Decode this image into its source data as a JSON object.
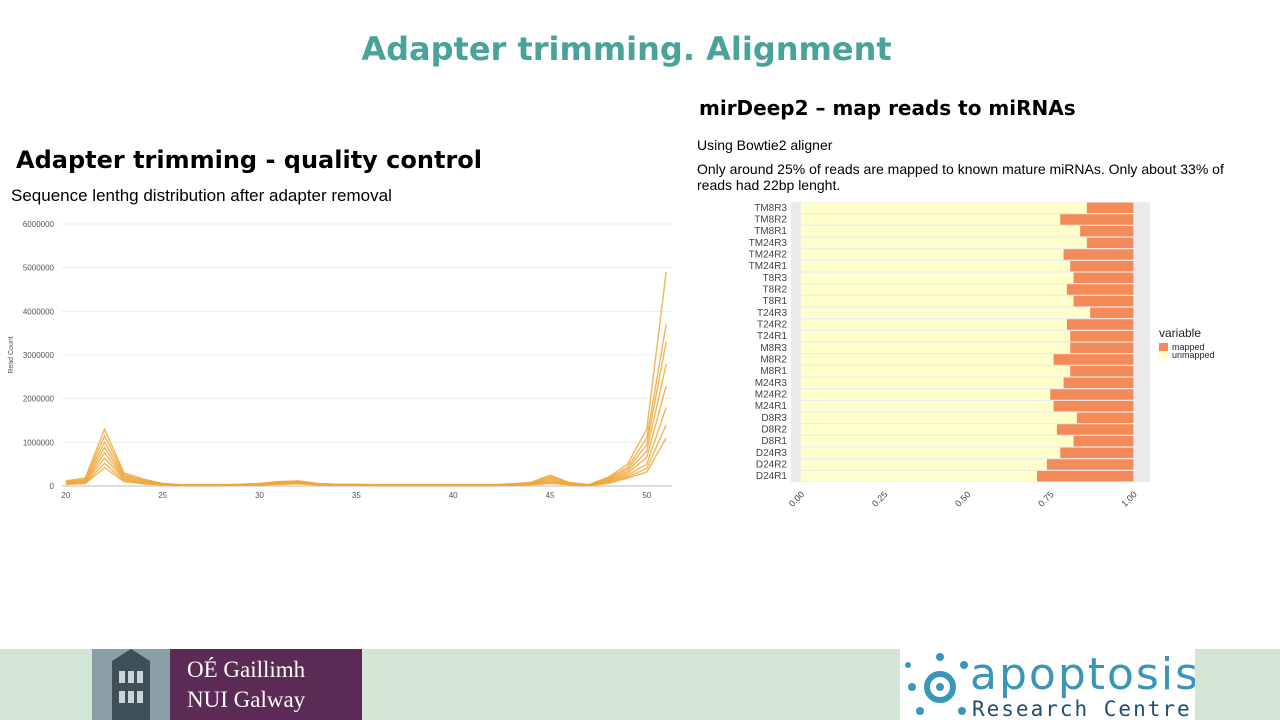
{
  "slide": {
    "title": "Adapter trimming. Alignment",
    "left_heading": "Adapter trimming - quality control",
    "left_subtitle": "Sequence lenthg distribution after adapter removal",
    "right_heading": "mirDeep2 – map reads to miRNAs",
    "right_line1": "Using Bowtie2 aligner",
    "right_line2": "Only around 25% of reads are mapped to known mature miRNAs. Only about 33% of reads had 22bp lenght."
  },
  "colors": {
    "title": "#4aa39a",
    "line_series": "#f0a73a",
    "mapped": "#f48a58",
    "unmapped": "#ffffcc",
    "panel": "#ebebeb",
    "footer": "#d3e6d6",
    "nui_purple": "#5b2a55",
    "apoptosis_blue": "#3a96b8"
  },
  "chart_data": [
    {
      "type": "line",
      "title": "",
      "xlabel": "",
      "ylabel": "Read Count",
      "xlim": [
        19.8,
        51.3
      ],
      "ylim": [
        0,
        6000000
      ],
      "x_ticks": [
        20,
        25,
        30,
        35,
        40,
        45,
        50
      ],
      "y_ticks": [
        0,
        1000000,
        2000000,
        3000000,
        4000000,
        5000000,
        6000000
      ],
      "y_tick_labels": [
        "0",
        "1000000",
        "2000000",
        "3000000",
        "4000000",
        "5000000",
        "6000000"
      ],
      "grid": true,
      "x": [
        20,
        21,
        22,
        23,
        24,
        25,
        26,
        27,
        28,
        29,
        30,
        31,
        32,
        33,
        34,
        35,
        36,
        37,
        38,
        39,
        40,
        41,
        42,
        43,
        44,
        45,
        46,
        47,
        48,
        49,
        50,
        51
      ],
      "series": [
        {
          "values": [
            120000,
            180000,
            1300000,
            300000,
            160000,
            60000,
            30000,
            30000,
            30000,
            40000,
            60000,
            100000,
            120000,
            60000,
            40000,
            40000,
            30000,
            30000,
            30000,
            30000,
            30000,
            30000,
            30000,
            50000,
            80000,
            250000,
            80000,
            30000,
            200000,
            500000,
            1300000,
            4900000
          ]
        },
        {
          "values": [
            100000,
            150000,
            1150000,
            260000,
            140000,
            55000,
            28000,
            28000,
            28000,
            36000,
            55000,
            90000,
            110000,
            55000,
            36000,
            36000,
            28000,
            28000,
            28000,
            28000,
            28000,
            28000,
            28000,
            45000,
            70000,
            220000,
            70000,
            28000,
            180000,
            430000,
            1100000,
            3700000
          ]
        },
        {
          "values": [
            90000,
            130000,
            1000000,
            230000,
            120000,
            50000,
            25000,
            25000,
            25000,
            33000,
            50000,
            80000,
            100000,
            50000,
            33000,
            33000,
            25000,
            25000,
            25000,
            25000,
            25000,
            25000,
            25000,
            40000,
            60000,
            190000,
            60000,
            25000,
            160000,
            380000,
            950000,
            3300000
          ]
        },
        {
          "values": [
            80000,
            110000,
            880000,
            200000,
            100000,
            45000,
            22000,
            22000,
            22000,
            30000,
            45000,
            70000,
            90000,
            45000,
            30000,
            30000,
            22000,
            22000,
            22000,
            22000,
            22000,
            22000,
            22000,
            35000,
            50000,
            160000,
            50000,
            22000,
            140000,
            330000,
            800000,
            2800000
          ]
        },
        {
          "values": [
            70000,
            95000,
            760000,
            170000,
            85000,
            40000,
            20000,
            20000,
            20000,
            27000,
            40000,
            60000,
            80000,
            40000,
            27000,
            27000,
            20000,
            20000,
            20000,
            20000,
            20000,
            20000,
            20000,
            30000,
            45000,
            130000,
            45000,
            20000,
            120000,
            290000,
            650000,
            2300000
          ]
        },
        {
          "values": [
            60000,
            80000,
            640000,
            150000,
            70000,
            35000,
            18000,
            18000,
            18000,
            24000,
            35000,
            50000,
            70000,
            35000,
            24000,
            24000,
            18000,
            18000,
            18000,
            18000,
            18000,
            18000,
            18000,
            25000,
            40000,
            100000,
            40000,
            18000,
            100000,
            250000,
            500000,
            1800000
          ]
        },
        {
          "values": [
            50000,
            65000,
            520000,
            120000,
            60000,
            30000,
            15000,
            15000,
            15000,
            20000,
            30000,
            45000,
            60000,
            30000,
            20000,
            20000,
            15000,
            15000,
            15000,
            15000,
            15000,
            15000,
            15000,
            22000,
            35000,
            80000,
            35000,
            15000,
            80000,
            210000,
            400000,
            1400000
          ]
        },
        {
          "values": [
            40000,
            55000,
            420000,
            100000,
            50000,
            25000,
            12000,
            12000,
            12000,
            17000,
            25000,
            40000,
            50000,
            25000,
            17000,
            17000,
            12000,
            12000,
            12000,
            12000,
            12000,
            12000,
            12000,
            18000,
            30000,
            60000,
            30000,
            12000,
            60000,
            180000,
            320000,
            1100000
          ]
        }
      ]
    },
    {
      "type": "bar",
      "orientation": "horizontal",
      "stacked": true,
      "categories": [
        "TM8R3",
        "TM8R2",
        "TM8R1",
        "TM24R3",
        "TM24R2",
        "TM24R1",
        "T8R3",
        "T8R2",
        "T8R1",
        "T24R3",
        "T24R2",
        "T24R1",
        "M8R3",
        "M8R2",
        "M8R1",
        "M24R3",
        "M24R2",
        "M24R1",
        "D8R3",
        "D8R2",
        "D8R1",
        "D24R3",
        "D24R2",
        "D24R1"
      ],
      "series": [
        {
          "name": "unmapped",
          "values": [
            0.86,
            0.78,
            0.84,
            0.86,
            0.79,
            0.81,
            0.82,
            0.8,
            0.82,
            0.87,
            0.8,
            0.81,
            0.81,
            0.76,
            0.81,
            0.79,
            0.75,
            0.76,
            0.83,
            0.77,
            0.82,
            0.78,
            0.74,
            0.71
          ]
        },
        {
          "name": "mapped",
          "values": [
            0.14,
            0.22,
            0.16,
            0.14,
            0.21,
            0.19,
            0.18,
            0.2,
            0.18,
            0.13,
            0.2,
            0.19,
            0.19,
            0.24,
            0.19,
            0.21,
            0.25,
            0.24,
            0.17,
            0.23,
            0.18,
            0.22,
            0.26,
            0.29
          ]
        }
      ],
      "x_ticks": [
        0,
        0.25,
        0.5,
        0.75,
        1
      ],
      "x_tick_labels": [
        "0.00",
        "0.25",
        "0.50",
        "0.75",
        "1.00"
      ],
      "xlim": [
        -0.03,
        1.05
      ],
      "legend_title": "variable",
      "legend_entries": [
        "mapped",
        "unmapped"
      ],
      "legend_position": "right"
    }
  ]
}
